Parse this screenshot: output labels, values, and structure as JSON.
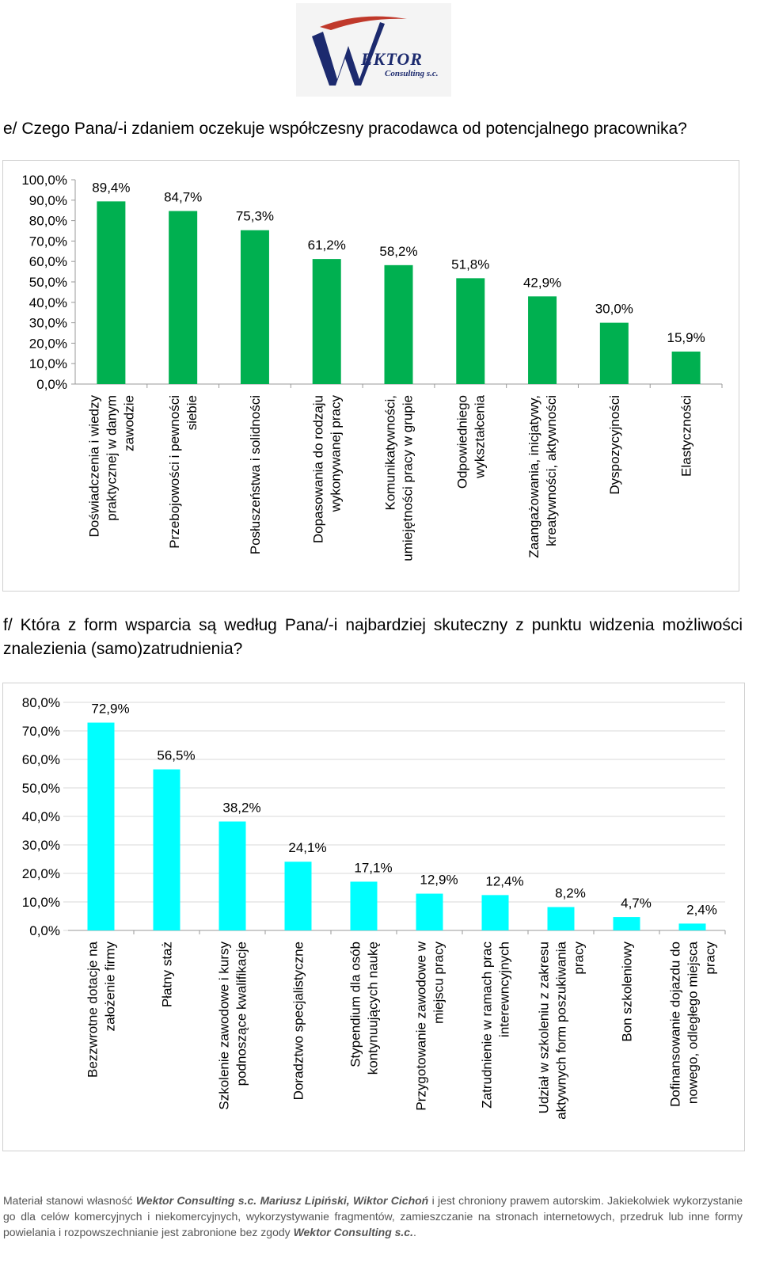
{
  "logo": {
    "name": "EKTOR",
    "sub": "Consulting s.c."
  },
  "question_e": "e/ Czego Pana/-i zdaniem oczekuje współczesny pracodawca od potencjalnego pracownika?",
  "question_f": "f/ Która z form wsparcia są według Pana/-i najbardziej skuteczny z punktu widzenia możliwości znalezienia (samo)zatrudnienia?",
  "colors": {
    "chart1_bar": "#00b050",
    "chart2_bar": "#00ffff",
    "grid": "#d9d9d9"
  },
  "chart_data": [
    {
      "type": "bar",
      "title": "",
      "xlabel": "",
      "ylabel": "",
      "ylim": [
        0,
        100
      ],
      "yticks": [
        "0,0%",
        "10,0%",
        "20,0%",
        "30,0%",
        "40,0%",
        "50,0%",
        "60,0%",
        "70,0%",
        "80,0%",
        "90,0%",
        "100,0%"
      ],
      "categories": [
        [
          "Doświadczenia i wiedzy",
          "praktycznej w danym",
          "zawodzie"
        ],
        [
          "Przebojowości i pewności",
          "siebie"
        ],
        [
          "Posłuszeństwa i solidności"
        ],
        [
          "Dopasowania do rodzaju",
          "wykonywanej pracy"
        ],
        [
          "Komunikatywności,",
          "umiejętności pracy w grupie"
        ],
        [
          "Odpowiedniego",
          "wykształcenia"
        ],
        [
          "Zaangażowania, inicjatywy,",
          "kreatywności, aktywności"
        ],
        [
          "Dyspozycyjności"
        ],
        [
          "Elastyczności"
        ]
      ],
      "values": [
        89.4,
        84.7,
        75.3,
        61.2,
        58.2,
        51.8,
        42.9,
        30.0,
        15.9
      ],
      "labels": [
        "89,4%",
        "84,7%",
        "75,3%",
        "61,2%",
        "58,2%",
        "51,8%",
        "42,9%",
        "30,0%",
        "15,9%"
      ],
      "grid": false,
      "legend": "none"
    },
    {
      "type": "bar",
      "title": "",
      "xlabel": "",
      "ylabel": "",
      "ylim": [
        0,
        80
      ],
      "yticks": [
        "0,0%",
        "10,0%",
        "20,0%",
        "30,0%",
        "40,0%",
        "50,0%",
        "60,0%",
        "70,0%",
        "80,0%"
      ],
      "categories": [
        [
          "Bezzwrotne dotacje na",
          "założenie firmy"
        ],
        [
          "Płatny staż"
        ],
        [
          "Szkolenie zawodowe i kursy",
          "podnoszące kwalifikacje"
        ],
        [
          "Doradztwo specjalistyczne"
        ],
        [
          "Stypendium dla osób",
          "kontynuujących naukę"
        ],
        [
          "Przygotowanie zawodowe w",
          "miejscu pracy"
        ],
        [
          "Zatrudnienie w ramach prac",
          "interewncyjnych"
        ],
        [
          "Udział w szkoleniu z zakresu",
          "aktywnych form poszukiwania",
          "pracy"
        ],
        [
          "Bon szkoleniowy"
        ],
        [
          "Dofinansowanie dojazdu do",
          "nowego, odległego miejsca",
          "pracy"
        ]
      ],
      "values": [
        72.9,
        56.5,
        38.2,
        24.1,
        17.1,
        12.9,
        12.4,
        8.2,
        4.7,
        2.4
      ],
      "labels": [
        "72,9%",
        "56,5%",
        "38,2%",
        "24,1%",
        "17,1%",
        "12,9%",
        "12,4%",
        "8,2%",
        "4,7%",
        "2,4%"
      ],
      "grid": true,
      "legend": "none"
    }
  ],
  "footer": {
    "t1": "Materiał stanowi własność ",
    "b1": "Wektor Consulting s.c. Mariusz Lipiński, Wiktor Cichoń",
    "t2": " i jest chroniony prawem autorskim. Jakiekolwiek wykorzystanie go dla celów komercyjnych i niekomercyjnych, wykorzystywanie fragmentów, zamieszczanie na stronach internetowych, przedruk lub inne formy powielania i rozpowszechnianie jest zabronione bez zgody ",
    "b2": "Wektor Consulting s.c."
  }
}
